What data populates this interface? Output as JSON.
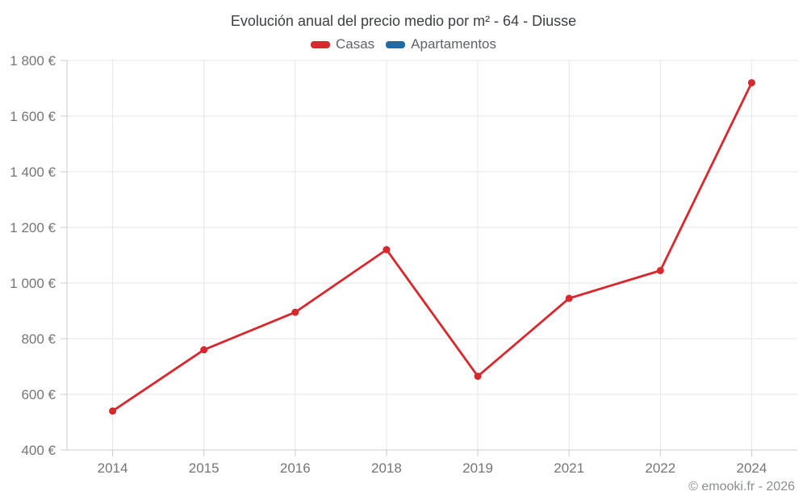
{
  "page": {
    "title": "Evolución anual del precio medio por m² - 64 - Diusse",
    "footer": "© emooki.fr - 2026"
  },
  "legend": {
    "items": [
      {
        "label": "Casas",
        "color": "#d7282e"
      },
      {
        "label": "Apartamentos",
        "color": "#1b6ca8"
      }
    ]
  },
  "chart_data": {
    "type": "line",
    "title": "Evolución anual del precio medio por m² - 64 - Diusse",
    "categories": [
      "2014",
      "2015",
      "2016",
      "2018",
      "2019",
      "2021",
      "2022",
      "2024"
    ],
    "series": [
      {
        "name": "Casas",
        "color": "#d7282e",
        "values": [
          540,
          760,
          895,
          1120,
          665,
          945,
          1045,
          1720
        ]
      },
      {
        "name": "Apartamentos",
        "color": "#1b6ca8",
        "values": []
      }
    ],
    "xlabel": "",
    "ylabel": "",
    "ylim": [
      400,
      1800
    ],
    "yticks": [
      400,
      600,
      800,
      1000,
      1200,
      1400,
      1600,
      1800
    ],
    "ytick_labels": [
      "400 €",
      "600 €",
      "800 €",
      "1 000 €",
      "1 200 €",
      "1 400 €",
      "1 600 €",
      "1 800 €"
    ],
    "currency_suffix": "€",
    "grid": true,
    "legend_position": "top",
    "watermark": "© emooki.fr - 2026"
  },
  "theme": {
    "background": "#ffffff",
    "grid_color": "#e6e6e6",
    "axis_color": "#cccccc",
    "tick_text_color": "#757575",
    "title_text_color": "#3c4043",
    "legend_text_color": "#5f6368",
    "footer_text_color": "#8a8f94",
    "casas_color": "#d7282e",
    "apartamentos_color": "#1b6ca8"
  }
}
